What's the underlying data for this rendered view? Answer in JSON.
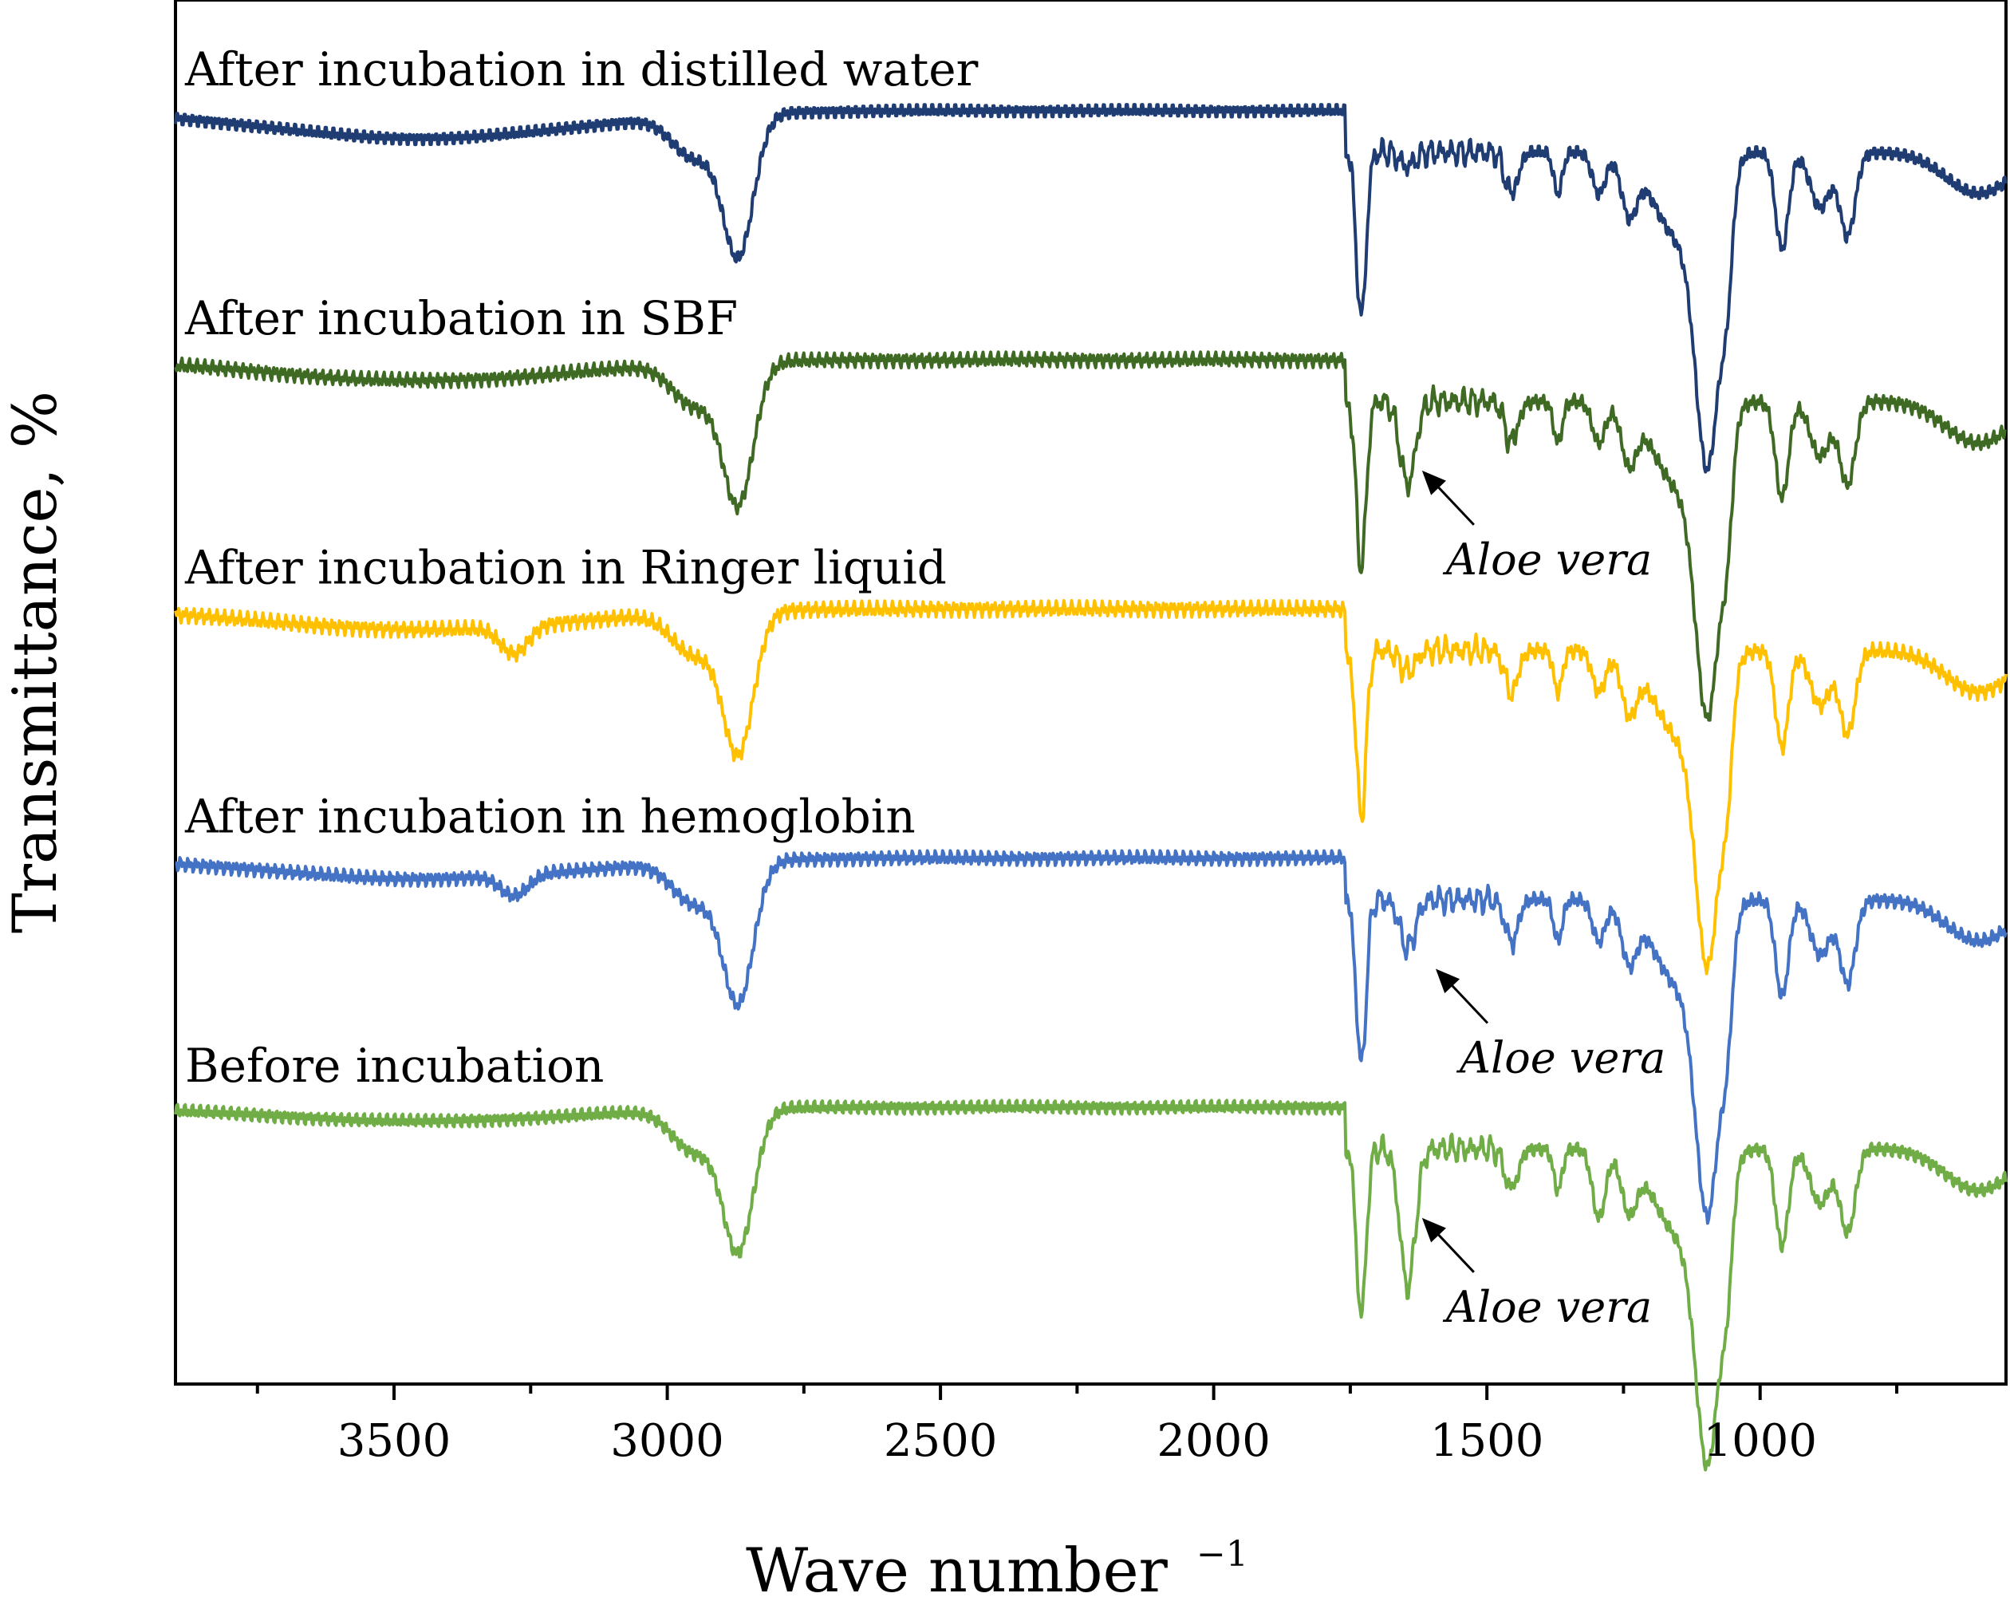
{
  "chart_data": {
    "type": "line",
    "title": "",
    "xlabel": "Wave number",
    "xlabel_superscript": "−1",
    "ylabel": "Transmittance, %",
    "xlim": [
      3900,
      550
    ],
    "x_reversed": true,
    "ylim": [
      0,
      100
    ],
    "grid": false,
    "legend": "inline labels above each curve",
    "x_ticks": [
      3500,
      3000,
      2500,
      2000,
      1500,
      1000
    ],
    "x_tick_labels": [
      "3500",
      "3000",
      "2500",
      "2000",
      "1500",
      "1000"
    ],
    "x_minor_ticks": [
      3750,
      3250,
      2750,
      2250,
      1750,
      1250,
      750
    ],
    "series": [
      {
        "name": "After incubation in distilled water",
        "color": "#1f3c73",
        "offset": 92,
        "label": "After incubation in distilled water"
      },
      {
        "name": "After incubation in SBF",
        "color": "#3f6a24",
        "offset": 74,
        "label": "After incubation in SBF"
      },
      {
        "name": "After incubation in Ringer liquid",
        "color": "#ffc000",
        "offset": 56,
        "label": "After incubation in Ringer liquid"
      },
      {
        "name": "After incubation in hemoglobin",
        "color": "#4472c4",
        "offset": 38,
        "label": "After incubation in hemoglobin"
      },
      {
        "name": "Before incubation",
        "color": "#70ad47",
        "offset": 20,
        "label": "Before incubation"
      }
    ],
    "annotations": [
      {
        "text": "Aloe vera",
        "series": "After incubation in SBF",
        "x": 1645
      },
      {
        "text": "Aloe vera",
        "series": "After incubation in hemoglobin",
        "x": 1620
      },
      {
        "text": "Aloe vera",
        "series": "Before incubation",
        "x": 1645
      }
    ]
  }
}
